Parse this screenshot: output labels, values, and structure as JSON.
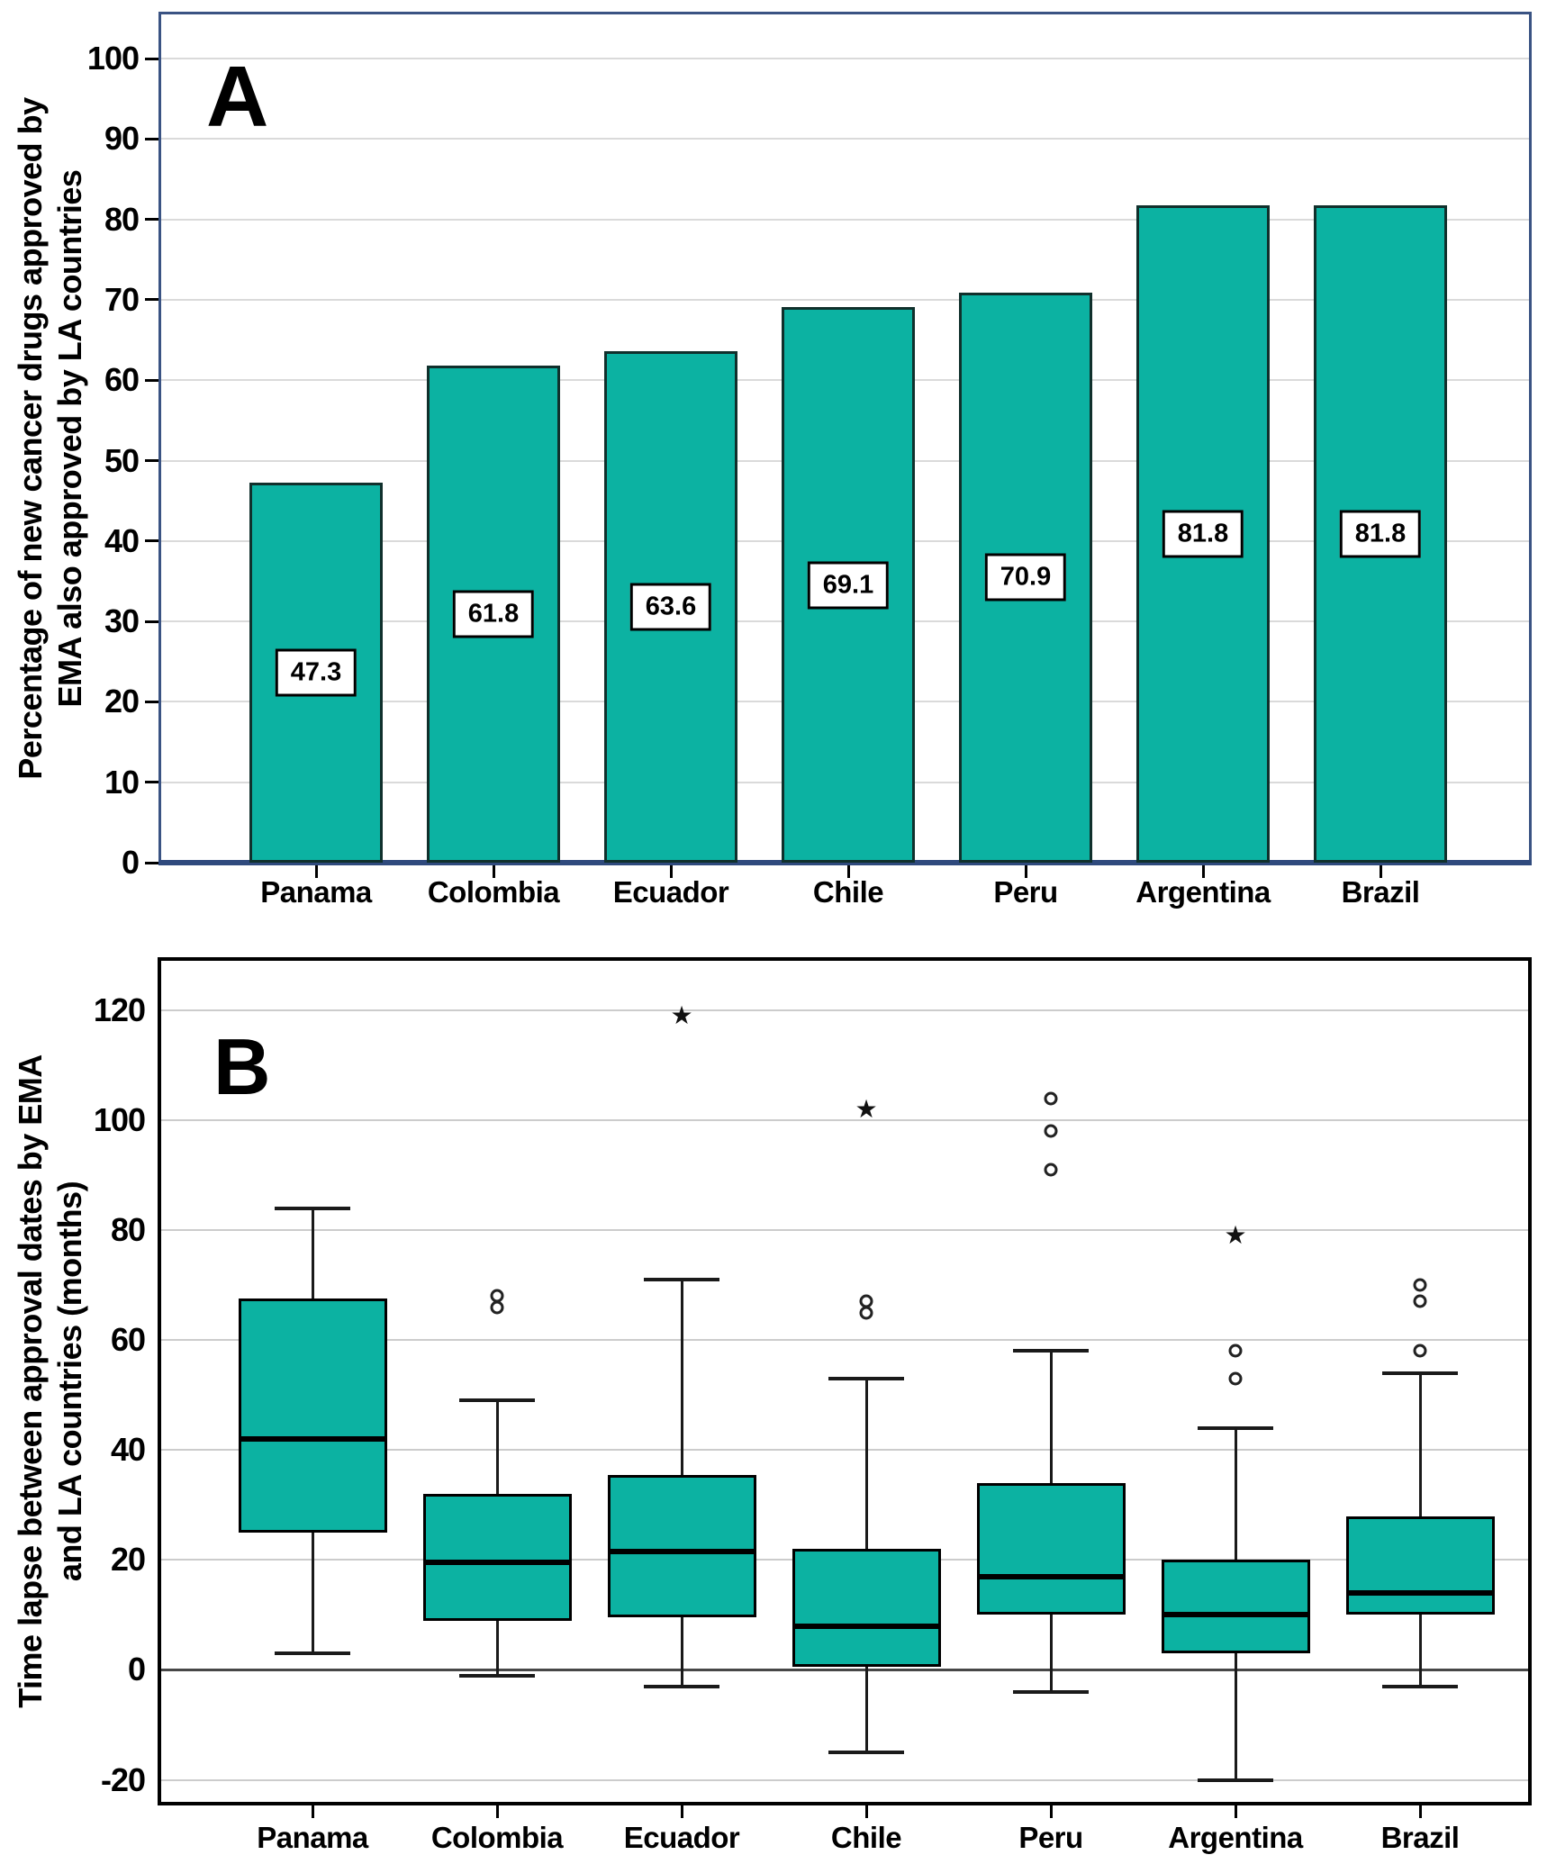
{
  "colors": {
    "fill_teal": "#0cb2a2",
    "bar_border": "#10302c",
    "panel_a_border": "#3a5383",
    "panel_a_axis": "#2f4a7d",
    "panel_b_border": "#000000",
    "gridline_a": "#dadada",
    "gridline_b": "#cccccc",
    "zero_line": "#474747",
    "text": "#000000",
    "value_box_bg": "#ffffff",
    "value_box_border": "#000000"
  },
  "chart_data": [
    {
      "panel_label": "A",
      "type": "bar",
      "ylabel_line1": "Percentage of new cancer drugs approved by",
      "ylabel_line2": "EMA also approved by LA countries",
      "categories": [
        "Panama",
        "Colombia",
        "Ecuador",
        "Chile",
        "Peru",
        "Argentina",
        "Brazil"
      ],
      "values": [
        47.3,
        61.8,
        63.6,
        69.1,
        70.9,
        81.8,
        81.8
      ],
      "bar_value_labels": [
        "47.3",
        "61.8",
        "63.6",
        "69.1",
        "70.9",
        "81.8",
        "81.8"
      ],
      "y_ticks": [
        0,
        10,
        20,
        30,
        40,
        50,
        60,
        70,
        80,
        90,
        100
      ],
      "ylim": [
        0,
        105.5
      ],
      "grid": "horizontal",
      "legend": "none"
    },
    {
      "panel_label": "B",
      "type": "box",
      "ylabel_line1": "Time lapse between approval dates by EMA",
      "ylabel_line2": "and LA countries (months)",
      "categories": [
        "Panama",
        "Colombia",
        "Ecuador",
        "Chile",
        "Peru",
        "Argentina",
        "Brazil"
      ],
      "y_ticks": [
        -20,
        0,
        20,
        40,
        60,
        80,
        100,
        120
      ],
      "ylim": [
        -24,
        129
      ],
      "grid": "horizontal",
      "legend": "none",
      "boxes": [
        {
          "country": "Panama",
          "whisker_low": 3,
          "q1": 25,
          "median": 42,
          "q3": 67.5,
          "whisker_high": 84,
          "outliers_circle": [],
          "outliers_star": []
        },
        {
          "country": "Colombia",
          "whisker_low": -1,
          "q1": 9,
          "median": 19.5,
          "q3": 32,
          "whisker_high": 49,
          "outliers_circle": [
            68,
            66
          ],
          "outliers_star": []
        },
        {
          "country": "Ecuador",
          "whisker_low": -3,
          "q1": 9.5,
          "median": 21.5,
          "q3": 35.5,
          "whisker_high": 71,
          "outliers_circle": [],
          "outliers_star": [
            119
          ]
        },
        {
          "country": "Chile",
          "whisker_low": -15,
          "q1": 0.5,
          "median": 8,
          "q3": 22,
          "whisker_high": 53,
          "outliers_circle": [
            67,
            65
          ],
          "outliers_star": [
            102
          ]
        },
        {
          "country": "Peru",
          "whisker_low": -4,
          "q1": 10,
          "median": 17,
          "q3": 34,
          "whisker_high": 58,
          "outliers_circle": [
            104,
            98,
            91
          ],
          "outliers_star": []
        },
        {
          "country": "Argentina",
          "whisker_low": -20,
          "q1": 3,
          "median": 10,
          "q3": 20,
          "whisker_high": 44,
          "outliers_circle": [
            58,
            53
          ],
          "outliers_star": [
            79
          ]
        },
        {
          "country": "Brazil",
          "whisker_low": -3,
          "q1": 10,
          "median": 14,
          "q3": 28,
          "whisker_high": 54,
          "outliers_circle": [
            70,
            67,
            58
          ],
          "outliers_star": []
        }
      ],
      "marker_legend": {
        "circle": "outlier",
        "star": "extreme-outlier"
      }
    }
  ]
}
